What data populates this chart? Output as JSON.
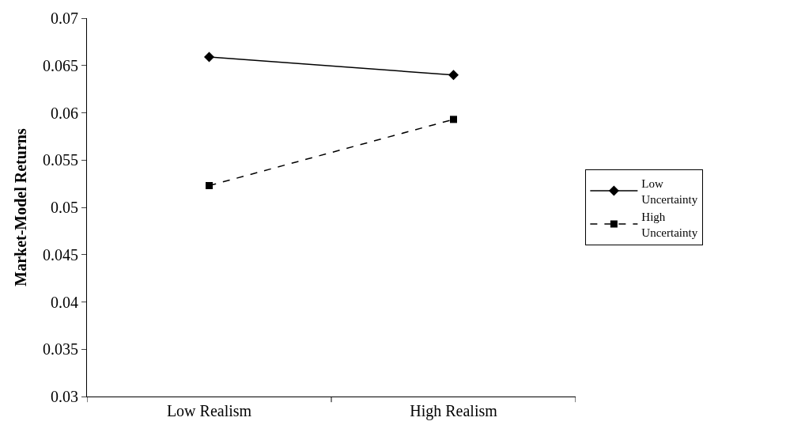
{
  "chart_data": {
    "type": "line",
    "ylabel": "Market-Model Returns",
    "categories": [
      "Low Realism",
      "High Realism"
    ],
    "series": [
      {
        "name": "Low Uncertainty",
        "color": "#000000",
        "values": [
          0.0659,
          0.064
        ],
        "marker": "diamond",
        "line_style": "solid"
      },
      {
        "name": "High Uncertainty",
        "color": "#000000",
        "values": [
          0.0523,
          0.0593
        ],
        "marker": "square",
        "line_style": "dashed"
      }
    ],
    "ylim": [
      0.03,
      0.07
    ],
    "yticks": [
      0.03,
      0.035,
      0.04,
      0.045,
      0.05,
      0.055,
      0.06,
      0.065,
      0.07
    ],
    "grid": false,
    "legend": "right"
  }
}
